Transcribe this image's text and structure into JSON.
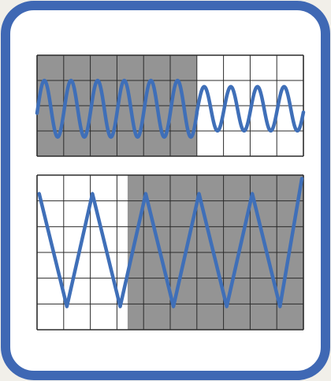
{
  "colors": {
    "page_background": "#f1efe9",
    "frame_border": "#3f68b4",
    "frame_fill": "#ffffff",
    "grid_line": "#2b2b2b",
    "shade": "#8b8b8b",
    "waveform": "#3f6fb8"
  },
  "panels": [
    {
      "id": "top",
      "grid_columns": 10,
      "grid_rows": 4,
      "shaded_columns": [
        0,
        6
      ],
      "waveform": {
        "peak_fraction": 0.25,
        "trough_fraction": 0.81,
        "segments": [
          {
            "from_col": 0,
            "to_col": 6,
            "cycles": 6,
            "amplitude": 1.0
          },
          {
            "from_col": 6,
            "to_col": 10,
            "cycles": 4,
            "amplitude": 0.78
          }
        ]
      }
    },
    {
      "id": "bottom",
      "grid_columns": 10,
      "grid_rows": 6,
      "shaded_columns": [
        3.4,
        10
      ],
      "waveform": {
        "peak_fraction": 0.12,
        "trough_fraction": 0.85,
        "segments": [
          {
            "from_col": 0,
            "to_col": 10,
            "cycles": 5,
            "amplitude": 1.0
          }
        ]
      }
    }
  ]
}
